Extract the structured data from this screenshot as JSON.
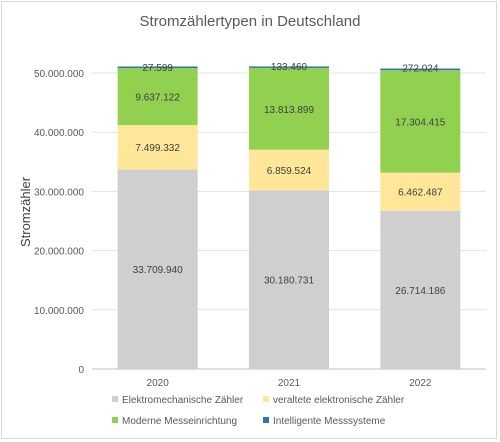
{
  "chart_data": {
    "type": "bar",
    "stacked": true,
    "title": "Stromzählertypen in Deutschland",
    "ylabel": "Stromzähler",
    "xlabel": "",
    "ylim": [
      0,
      50000000
    ],
    "yticks": [
      "0",
      "10.000.000",
      "20.000.000",
      "30.000.000",
      "40.000.000",
      "50.000.000"
    ],
    "categories": [
      "2020",
      "2021",
      "2022"
    ],
    "grid": true,
    "legend_position": "bottom",
    "series": [
      {
        "name": "Elektromechanische Zähler",
        "color": "#cfcfcf",
        "values": [
          33709940,
          30180731,
          26714186
        ],
        "labels": [
          "33.709.940",
          "30.180.731",
          "26.714.186"
        ]
      },
      {
        "name": "veraltete elektronische Zähler",
        "color": "#ffe699",
        "values": [
          7499332,
          6859524,
          6462487
        ],
        "labels": [
          "7.499.332",
          "6.859.524",
          "6.462.487"
        ]
      },
      {
        "name": "Moderne Messeinrichtung",
        "color": "#92d050",
        "values": [
          9637122,
          13813899,
          17304415
        ],
        "labels": [
          "9.637.122",
          "13.813.899",
          "17.304.415"
        ]
      },
      {
        "name": "Intelligente Messsysteme",
        "color": "#2e75b6",
        "values": [
          27599,
          133460,
          272024
        ],
        "labels": [
          "27.599",
          "133.460",
          "272.024"
        ]
      }
    ]
  }
}
